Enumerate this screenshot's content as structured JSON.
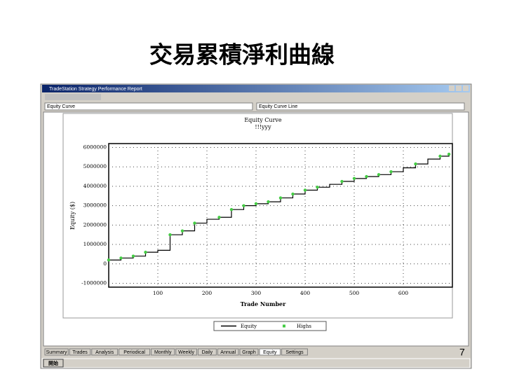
{
  "slide_title": "交易累積淨利曲線",
  "page_number": 7,
  "window": {
    "title": "TradeStation Strategy Performance Report",
    "dropdown_left": "Equity Curve",
    "dropdown_right": "Equity Curve Line",
    "tabs": [
      "Summary",
      "Trades",
      "Analysis",
      "Periodical",
      "Monthly",
      "Weekly",
      "Daily",
      "Annual",
      "Graph",
      "Equity",
      "Settings"
    ],
    "start_button": "開始"
  },
  "chart_data": {
    "type": "line",
    "title": "Equity Curve",
    "subtitle": "!!!yyy",
    "x_label": "Trade Number",
    "y_label": "Equity ($)",
    "x": [
      0,
      25,
      50,
      75,
      100,
      125,
      150,
      175,
      200,
      225,
      250,
      275,
      300,
      325,
      350,
      375,
      400,
      425,
      450,
      475,
      500,
      525,
      550,
      575,
      600,
      625,
      650,
      675,
      693
    ],
    "series": [
      {
        "name": "Equity",
        "color": "#000000",
        "values": [
          200000,
          300000,
          400000,
          600000,
          700000,
          1500000,
          1700000,
          2100000,
          2300000,
          2400000,
          2800000,
          3000000,
          3100000,
          3200000,
          3400000,
          3600000,
          3800000,
          3950000,
          4100000,
          4250000,
          4400000,
          4500000,
          4600000,
          4750000,
          4950000,
          5150000,
          5400000,
          5550000,
          5650000
        ]
      },
      {
        "name": "Highs",
        "color": "#44cc44",
        "values": [
          200000,
          300000,
          400000,
          600000,
          null,
          1500000,
          1700000,
          2100000,
          null,
          2400000,
          2800000,
          3000000,
          3100000,
          3200000,
          3400000,
          3600000,
          3800000,
          3950000,
          null,
          4250000,
          4400000,
          4500000,
          4600000,
          4750000,
          null,
          5150000,
          null,
          5550000,
          5650000
        ]
      }
    ],
    "xlim": [
      0,
      700
    ],
    "ylim": [
      -1200000,
      6200000
    ],
    "xticks": [
      100,
      200,
      300,
      400,
      500,
      600
    ],
    "yticks": [
      -1000000,
      0,
      1000000,
      2000000,
      3000000,
      4000000,
      5000000,
      6000000
    ],
    "grid": true
  }
}
